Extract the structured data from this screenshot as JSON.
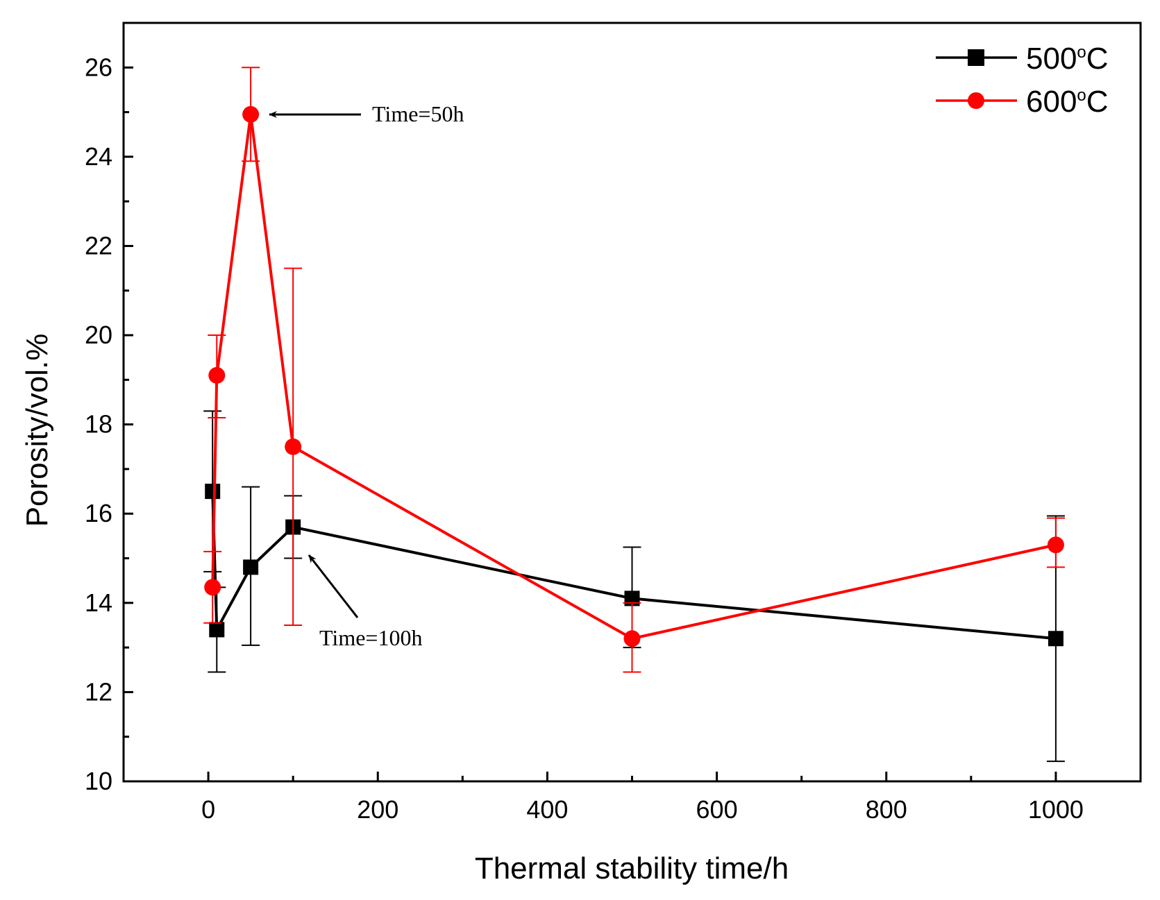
{
  "chart_data": {
    "type": "line",
    "xlabel": "Thermal stability time/h",
    "ylabel": "Porosity/vol.%",
    "xlim": [
      -100,
      1100
    ],
    "ylim": [
      10,
      27
    ],
    "x_ticks": [
      0,
      200,
      400,
      600,
      800,
      1000
    ],
    "y_ticks": [
      10,
      12,
      14,
      16,
      18,
      20,
      22,
      24,
      26
    ],
    "grid": false,
    "legend_position": "top-right",
    "series": [
      {
        "name": "500°C",
        "legend_number": "500",
        "legend_degree": "o",
        "legend_unit": "C",
        "color": "#000000",
        "marker": "square",
        "x": [
          5,
          10,
          50,
          100,
          500,
          1000
        ],
        "y": [
          16.5,
          13.4,
          14.8,
          15.7,
          14.1,
          13.2
        ],
        "err_low": [
          14.7,
          12.45,
          13.05,
          15.0,
          13.0,
          10.45
        ],
        "err_high": [
          18.3,
          14.35,
          16.6,
          16.4,
          15.25,
          15.95
        ]
      },
      {
        "name": "600°C",
        "legend_number": "600",
        "legend_degree": "o",
        "legend_unit": "C",
        "color": "#ff0000",
        "marker": "circle",
        "x": [
          5,
          10,
          50,
          100,
          500,
          1000
        ],
        "y": [
          14.35,
          19.1,
          24.95,
          17.5,
          13.2,
          15.3
        ],
        "err_low": [
          13.55,
          18.15,
          23.9,
          13.5,
          12.45,
          14.8
        ],
        "err_high": [
          15.15,
          20.0,
          26.0,
          21.5,
          14.0,
          15.9
        ]
      }
    ],
    "annotations": [
      {
        "text": "Time=50h",
        "target_x": 50,
        "target_y": 24.95
      },
      {
        "text": "Time=100h",
        "target_x": 100,
        "target_y": 15.7
      }
    ]
  }
}
